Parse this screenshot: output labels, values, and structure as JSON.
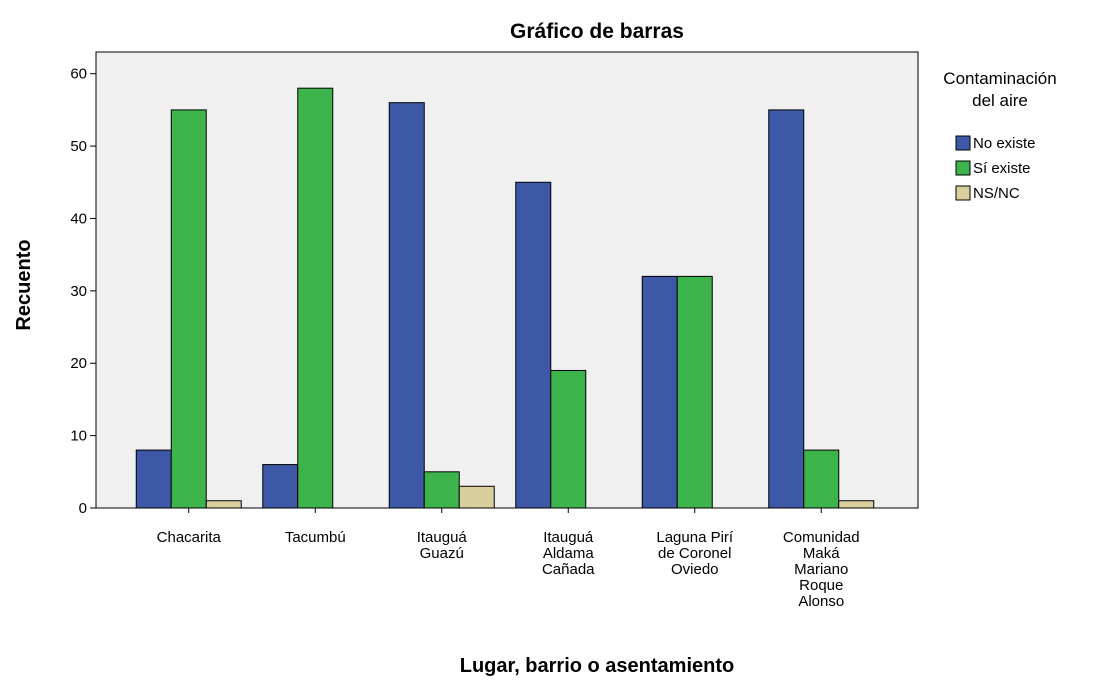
{
  "chart_data": {
    "type": "bar",
    "title": "Gráfico de barras",
    "x_label": "Lugar, barrio o asentamiento",
    "y_label": "Recuento",
    "legend_title": "Contaminación\ndel aire",
    "legend_position": "right",
    "categories": [
      "Chacarita",
      "Tacumbú",
      "Itauguá\nGuazú",
      "Itauguá\nAldama\nCañada",
      "Laguna Pirí\nde Coronel\nOviedo",
      "Comunidad\nMaká\nMariano\nRoque\nAlonso"
    ],
    "series": [
      {
        "name": "No existe",
        "color": "#3e58a8",
        "values": [
          8,
          6,
          56,
          45,
          32,
          55
        ]
      },
      {
        "name": "Sí existe",
        "color": "#3cb44b",
        "values": [
          55,
          58,
          5,
          19,
          32,
          8
        ]
      },
      {
        "name": "NS/NC",
        "color": "#d9cf9c",
        "values": [
          1,
          0,
          3,
          0,
          0,
          1
        ]
      }
    ],
    "ylim": [
      0,
      63
    ],
    "yticks": [
      0,
      10,
      20,
      30,
      40,
      50,
      60
    ],
    "grid": false
  }
}
